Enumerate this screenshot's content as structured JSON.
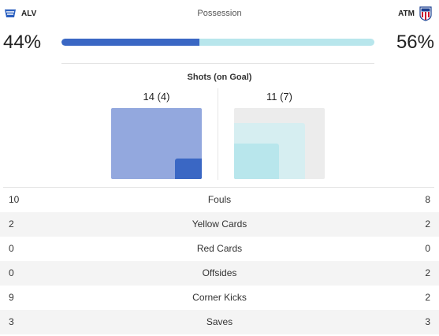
{
  "home": {
    "abbr": "ALV",
    "possession_pct": 44,
    "possession_text": "44%",
    "crest_color": "#2a5fbf"
  },
  "away": {
    "abbr": "ATM",
    "possession_pct": 56,
    "possession_text": "56%",
    "crest_color": "#c8102e"
  },
  "possession": {
    "label": "Possession",
    "home_color": "#3a67c4",
    "away_color": "#b8e6ec"
  },
  "shots": {
    "label": "Shots (on Goal)",
    "home": {
      "text": "14 (4)",
      "total": 14,
      "on_goal": 4
    },
    "away": {
      "text": "11 (7)",
      "total": 11,
      "on_goal": 7
    }
  },
  "stats": [
    {
      "label": "Fouls",
      "home": "10",
      "away": "8"
    },
    {
      "label": "Yellow Cards",
      "home": "2",
      "away": "2"
    },
    {
      "label": "Red Cards",
      "home": "0",
      "away": "0"
    },
    {
      "label": "Offsides",
      "home": "0",
      "away": "2"
    },
    {
      "label": "Corner Kicks",
      "home": "9",
      "away": "2"
    },
    {
      "label": "Saves",
      "home": "3",
      "away": "3"
    }
  ]
}
